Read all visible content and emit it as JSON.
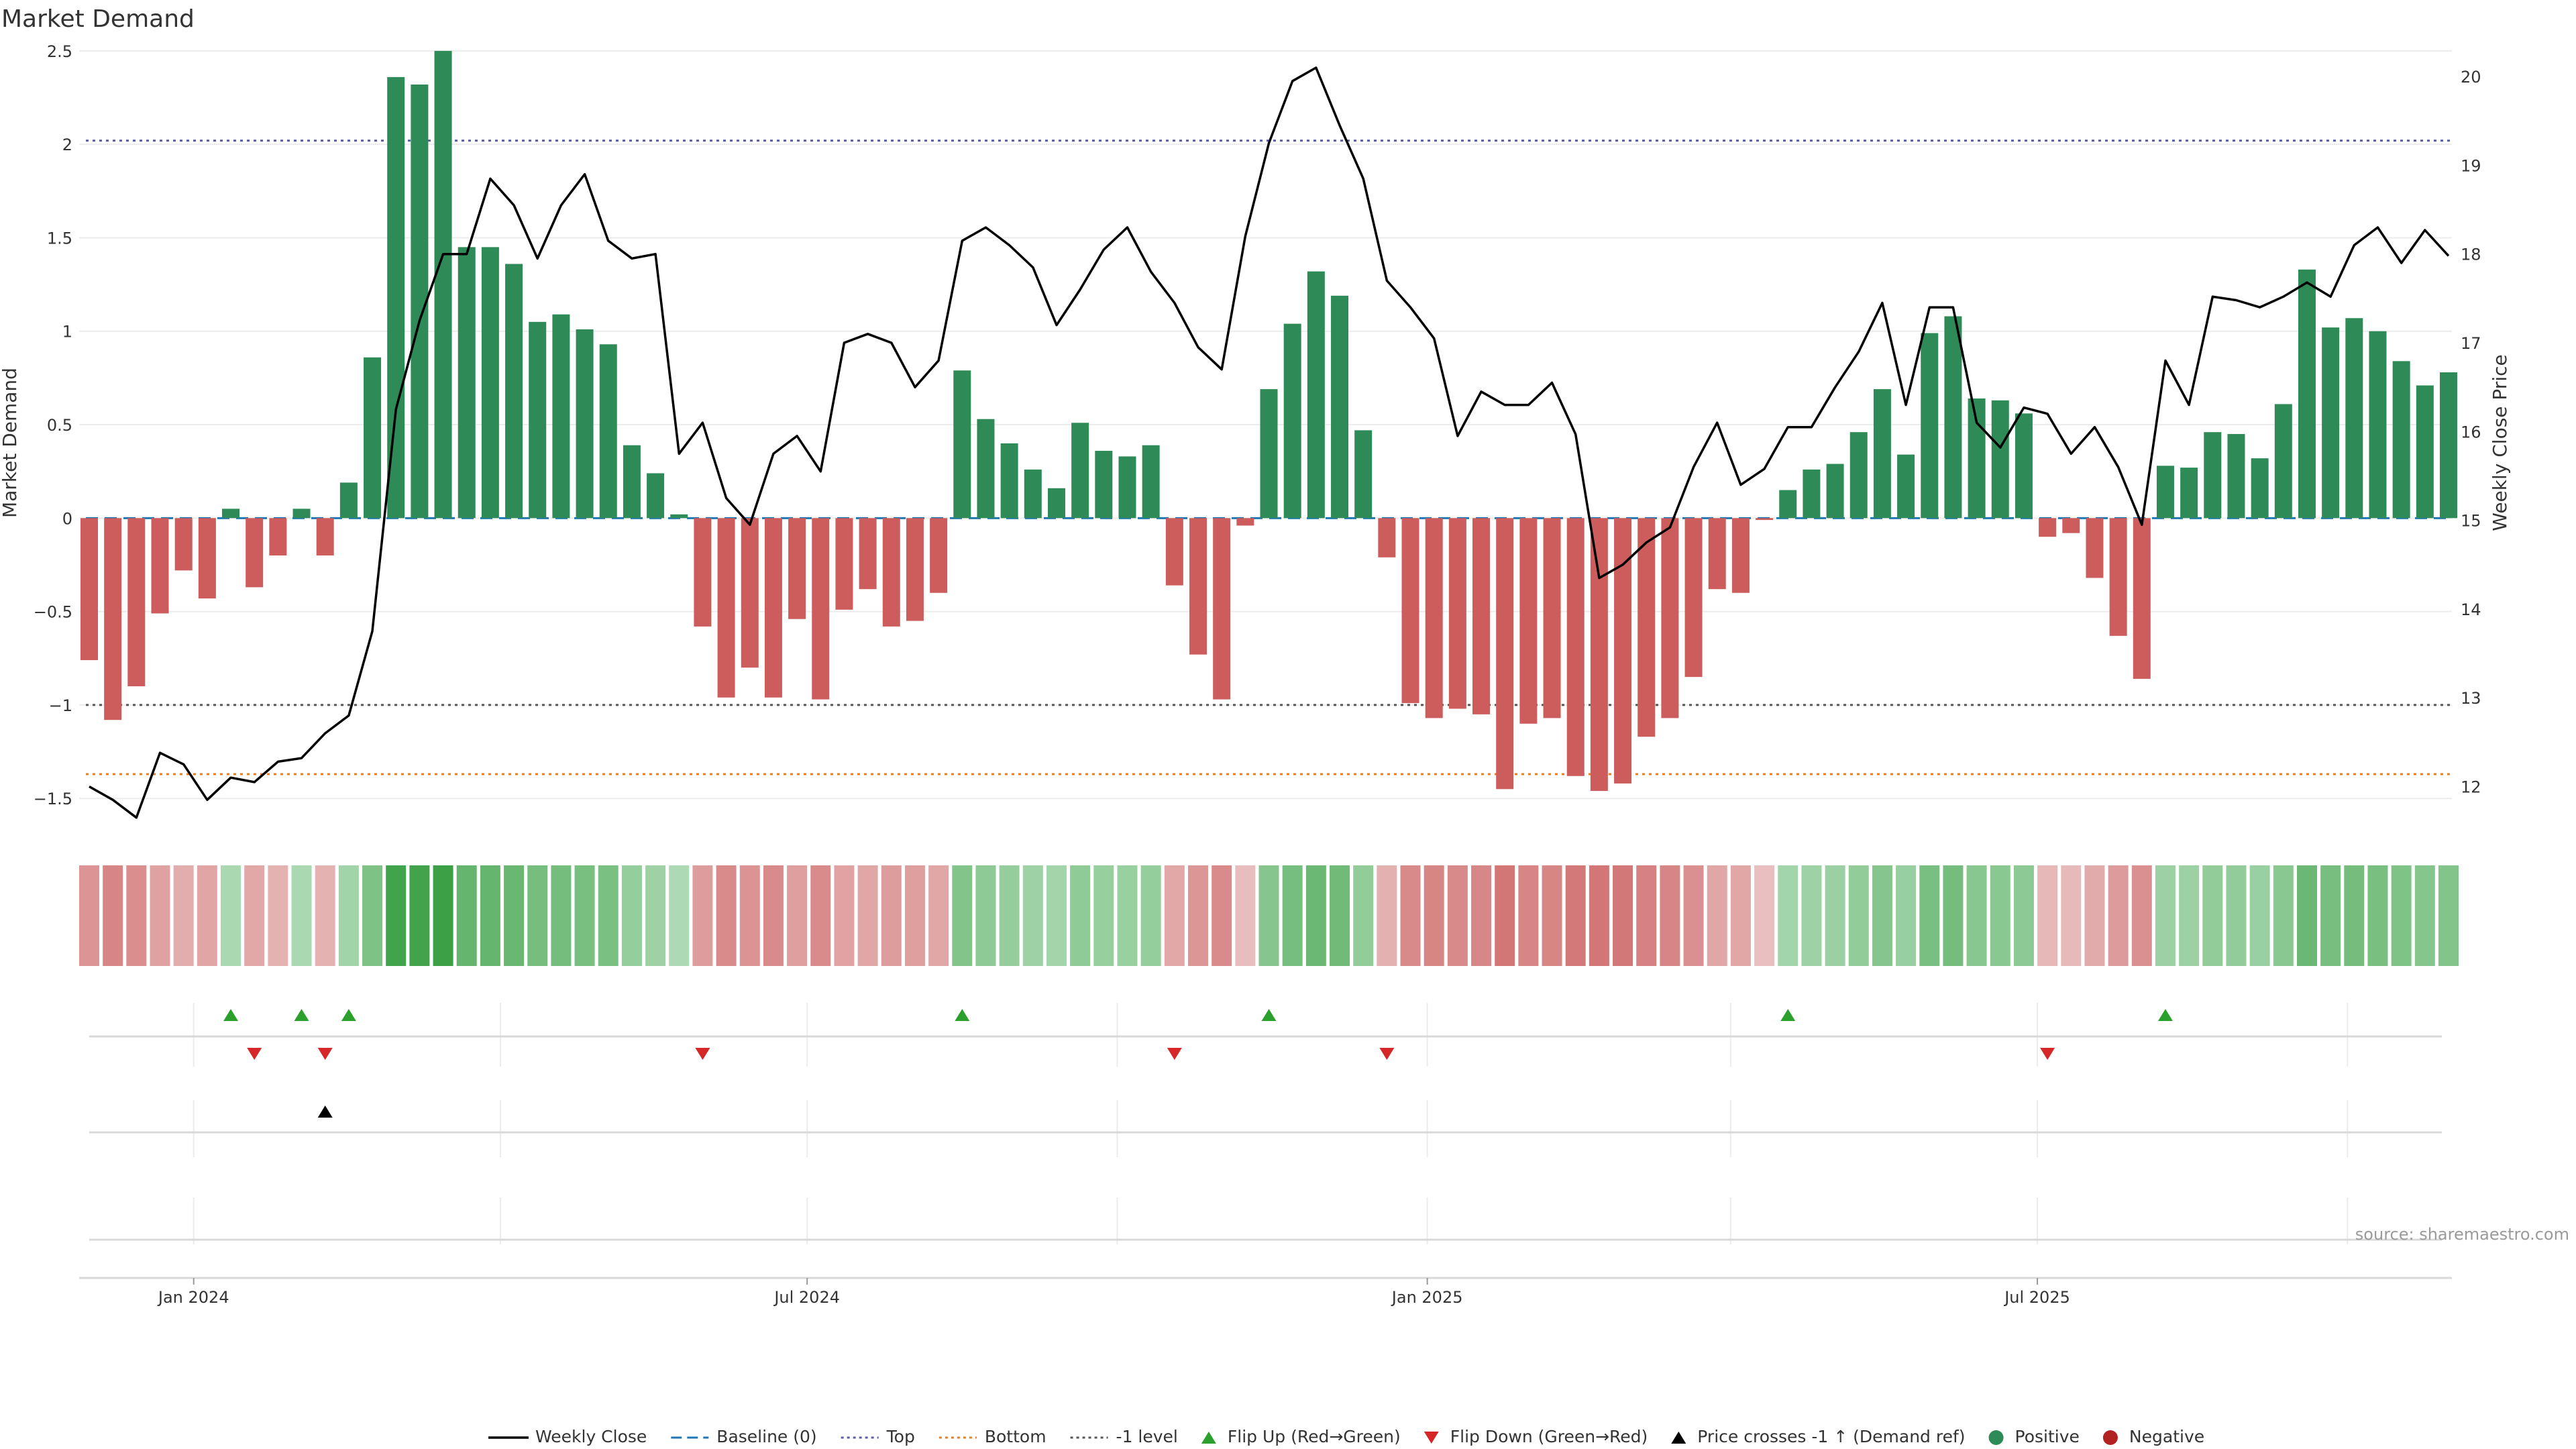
{
  "chart_data": {
    "type": "bar",
    "title": "Market Demand",
    "ylabel_left": "Market Demand",
    "ylabel_right": "Weekly Close Price",
    "source": "source: sharemaestro.com",
    "x_start_date": "2023-12-01",
    "x_step_days": 7,
    "x_tick_labels": [
      "Jan 2024",
      "Jul 2024",
      "Jan 2025",
      "Jul 2025"
    ],
    "x_tick_dates": [
      "2024-01-01",
      "2024-07-01",
      "2025-01-01",
      "2025-07-01"
    ],
    "minor_grid_dates": [
      "2024-01-01",
      "2024-04-01",
      "2024-07-01",
      "2024-10-01",
      "2025-01-01",
      "2025-04-01",
      "2025-07-01",
      "2025-10-01"
    ],
    "ylim_left": [
      -1.65,
      2.6
    ],
    "yticks_left": [
      -1.5,
      -1,
      -0.5,
      0,
      0.5,
      1,
      1.5,
      2,
      2.5
    ],
    "ytick_labels_left": [
      "−1.5",
      "−1",
      "−0.5",
      "0",
      "0.5",
      "1",
      "1.5",
      "2",
      "2.5"
    ],
    "ylim_right": [
      11.55,
      20.5
    ],
    "yticks_right": [
      12,
      13,
      14,
      15,
      16,
      17,
      18,
      19,
      20
    ],
    "ytick_labels_right": [
      "12",
      "13",
      "14",
      "15",
      "16",
      "17",
      "18",
      "19",
      "20"
    ],
    "reference_lines": {
      "baseline": 0,
      "top": 2.02,
      "bottom": -1.37,
      "minus_one": -1.0
    },
    "demand": [
      -0.76,
      -1.08,
      -0.9,
      -0.51,
      -0.28,
      -0.43,
      0.05,
      -0.37,
      -0.2,
      0.05,
      -0.2,
      0.19,
      0.86,
      2.36,
      2.32,
      2.5,
      1.45,
      1.45,
      1.36,
      1.05,
      1.09,
      1.01,
      0.93,
      0.39,
      0.24,
      0.02,
      -0.58,
      -0.96,
      -0.8,
      -0.96,
      -0.54,
      -0.97,
      -0.49,
      -0.38,
      -0.58,
      -0.55,
      -0.4,
      0.79,
      0.53,
      0.4,
      0.26,
      0.16,
      0.51,
      0.36,
      0.33,
      0.39,
      -0.36,
      -0.73,
      -0.97,
      -0.04,
      0.69,
      1.04,
      1.32,
      1.19,
      0.47,
      -0.21,
      -0.99,
      -1.07,
      -1.02,
      -1.05,
      -1.45,
      -1.1,
      -1.07,
      -1.38,
      -1.46,
      -1.42,
      -1.17,
      -1.07,
      -0.85,
      -0.38,
      -0.4,
      -0.01,
      0.15,
      0.26,
      0.29,
      0.46,
      0.69,
      0.34,
      0.99,
      1.08,
      0.64,
      0.63,
      0.56,
      -0.1,
      -0.08,
      -0.32,
      -0.63,
      -0.86,
      0.28,
      0.27,
      0.46,
      0.45,
      0.32,
      0.61,
      1.33,
      1.02,
      1.07,
      1.0,
      0.84,
      0.71,
      0.78
    ],
    "weekly_close": [
      12.0,
      11.85,
      11.65,
      12.38,
      12.25,
      11.85,
      12.1,
      12.05,
      12.28,
      12.32,
      12.6,
      12.8,
      13.75,
      16.25,
      17.25,
      18.0,
      18.0,
      18.85,
      18.55,
      17.95,
      18.55,
      18.9,
      18.15,
      17.95,
      18.0,
      15.75,
      16.1,
      15.25,
      14.95,
      15.75,
      15.95,
      15.55,
      17.0,
      17.1,
      17.0,
      16.5,
      16.8,
      18.15,
      18.3,
      18.1,
      17.85,
      17.2,
      17.6,
      18.05,
      18.3,
      17.8,
      17.45,
      16.95,
      16.7,
      18.2,
      19.25,
      19.95,
      20.1,
      19.45,
      18.85,
      17.7,
      17.4,
      17.05,
      15.95,
      16.45,
      16.3,
      16.3,
      16.55,
      15.97,
      14.35,
      14.5,
      14.75,
      14.92,
      15.6,
      16.1,
      15.4,
      15.58,
      16.05,
      16.05,
      16.5,
      16.9,
      17.45,
      16.3,
      17.4,
      17.4,
      16.1,
      15.82,
      16.27,
      16.2,
      15.75,
      16.05,
      15.6,
      14.95,
      16.8,
      16.3,
      17.52,
      17.48,
      17.4,
      17.52,
      17.68,
      17.52,
      18.1,
      18.3,
      17.9,
      18.27,
      17.98
    ],
    "heat_strip": "demand value shown by cell color",
    "flip_up_indices": [
      6,
      9,
      11,
      37,
      50,
      72,
      88
    ],
    "flip_down_indices": [
      7,
      10,
      26,
      46,
      55,
      83
    ],
    "price_cross_indices": [
      10
    ],
    "legend": [
      {
        "label": "Weekly Close",
        "kind": "line",
        "color": "#000000"
      },
      {
        "label": "Baseline (0)",
        "kind": "dashed",
        "color": "#1f77b4"
      },
      {
        "label": "Top",
        "kind": "dotted",
        "color": "#5b5ea6"
      },
      {
        "label": "Bottom",
        "kind": "dotted",
        "color": "#e67e22"
      },
      {
        "label": "-1 level",
        "kind": "dotted",
        "color": "#555555"
      },
      {
        "label": "Flip Up (Red→Green)",
        "kind": "triangle-up",
        "color": "#2ca02c"
      },
      {
        "label": "Flip Down (Green→Red)",
        "kind": "triangle-down",
        "color": "#d62728"
      },
      {
        "label": "Price crosses -1 ↑ (Demand ref)",
        "kind": "triangle-up",
        "color": "#000000"
      },
      {
        "label": "Positive",
        "kind": "dot",
        "color": "#2e8b57"
      },
      {
        "label": "Negative",
        "kind": "dot",
        "color": "#b22222"
      }
    ],
    "legend_position": "bottom-center",
    "grid": true,
    "colors": {
      "positive_bar": "#2e8b57",
      "negative_bar": "#cd5c5c",
      "price_line": "#000000",
      "baseline": "#1f77b4",
      "top_line": "#5b5ea6",
      "bottom_line": "#e67e22",
      "minus_one_line": "#555555",
      "flip_up": "#2ca02c",
      "flip_down": "#d62728",
      "cross_marker": "#000000"
    }
  }
}
